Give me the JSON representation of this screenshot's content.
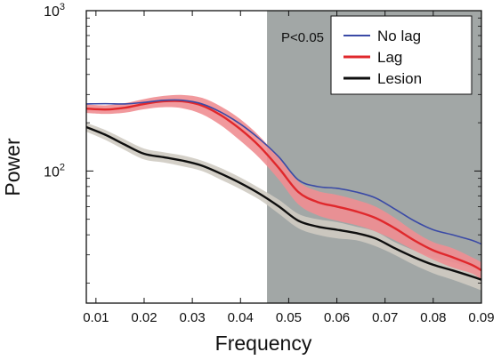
{
  "chart_data": {
    "type": "line",
    "xlabel": "Frequency",
    "ylabel": "Power",
    "yscale": "log",
    "xlim": [
      0.008,
      0.09
    ],
    "ylim": [
      15,
      1000
    ],
    "x_ticks": [
      0.01,
      0.02,
      0.03,
      0.04,
      0.05,
      0.06,
      0.07,
      0.08,
      0.09
    ],
    "x_tick_labels": [
      "0.01",
      "0.02",
      "0.03",
      "0.04",
      "0.05",
      "0.06",
      "0.07",
      "0.08",
      "0.09"
    ],
    "y_ticks": [
      {
        "value": 100,
        "base": "10",
        "exp": "2"
      },
      {
        "value": 1000,
        "base": "10",
        "exp": "3"
      }
    ],
    "grid": false,
    "legend_position": "top-right",
    "significance_region": {
      "x_start": 0.0455,
      "x_end": 0.09,
      "label": "P<0.05",
      "color": "#a2a7a6"
    },
    "series": [
      {
        "name": "No lag",
        "color": "#3a4aa6",
        "band_color": "#3a4aa6",
        "x": [
          0.008,
          0.012,
          0.016,
          0.02,
          0.024,
          0.028,
          0.032,
          0.036,
          0.04,
          0.044,
          0.048,
          0.052,
          0.056,
          0.06,
          0.064,
          0.068,
          0.072,
          0.076,
          0.08,
          0.084,
          0.088,
          0.09
        ],
        "values": [
          262,
          263,
          262,
          268,
          276,
          276,
          262,
          232,
          196,
          158,
          122,
          88,
          80,
          78,
          74,
          68,
          58,
          49,
          43,
          40,
          37,
          35
        ],
        "band": [
          0,
          0,
          0,
          0,
          0,
          0,
          0,
          0,
          0,
          0,
          0,
          0,
          0,
          0,
          0,
          0,
          0,
          0,
          0,
          0,
          0,
          0
        ]
      },
      {
        "name": "Lag",
        "color": "#e0282c",
        "band_color": "#f08e92",
        "x": [
          0.008,
          0.012,
          0.016,
          0.02,
          0.024,
          0.028,
          0.032,
          0.036,
          0.04,
          0.044,
          0.048,
          0.052,
          0.056,
          0.06,
          0.064,
          0.068,
          0.072,
          0.076,
          0.08,
          0.084,
          0.088,
          0.09
        ],
        "values": [
          245,
          242,
          248,
          262,
          272,
          272,
          256,
          222,
          182,
          142,
          104,
          74,
          64,
          60,
          56,
          51,
          44,
          37,
          32,
          29,
          26,
          24
        ],
        "band": [
          15,
          15,
          17,
          19,
          22,
          26,
          30,
          30,
          28,
          22,
          16,
          12,
          11,
          11,
          10,
          9,
          7,
          5,
          4,
          4,
          3,
          3
        ]
      },
      {
        "name": "Lesion",
        "color": "#0e0e0e",
        "band_color": "#cfcbc2",
        "x": [
          0.008,
          0.012,
          0.016,
          0.02,
          0.024,
          0.028,
          0.032,
          0.036,
          0.04,
          0.044,
          0.048,
          0.052,
          0.056,
          0.06,
          0.064,
          0.068,
          0.072,
          0.076,
          0.08,
          0.084,
          0.088,
          0.09
        ],
        "values": [
          188,
          168,
          146,
          128,
          122,
          116,
          108,
          96,
          84,
          72,
          60,
          49,
          45,
          43,
          41,
          38,
          33,
          29,
          26,
          24,
          22,
          21
        ],
        "band": [
          12,
          12,
          11,
          10,
          9,
          9,
          8,
          8,
          7,
          6,
          6,
          5,
          5,
          5,
          4,
          4,
          3,
          3,
          3,
          3,
          3,
          3
        ]
      }
    ]
  }
}
